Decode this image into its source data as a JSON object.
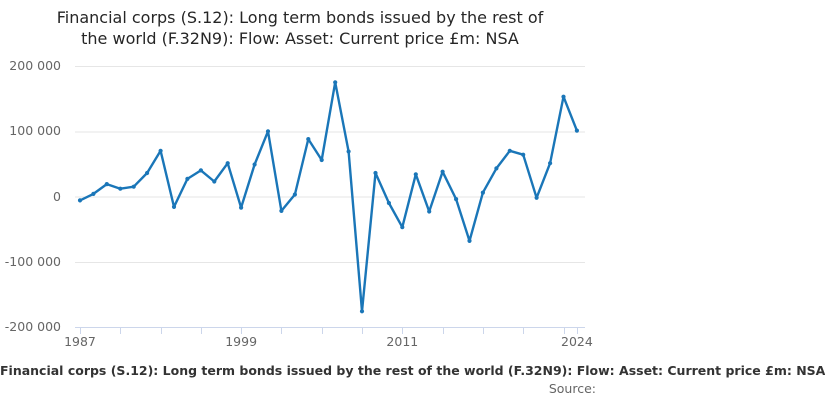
{
  "title": {
    "text": "Financial corps (S.12): Long term bonds issued by the rest of the world (F.32N9): Flow: Asset: Current price £m: NSA",
    "lines": [
      "Financial corps (S.12): Long term bonds issued by the rest of",
      "the world (F.32N9): Flow: Asset: Current price £m: NSA"
    ]
  },
  "footer": {
    "text": "Financial corps (S.12): Long term bonds issued by the rest of the world (F.32N9): Flow: Asset: Current price £m: NSA",
    "source": "Source:"
  },
  "colors": {
    "line": "#1a76b8",
    "grid": "#e6e6e6",
    "axis": "#ccd6eb",
    "tick_label": "#666666",
    "title_text": "#262626",
    "footer_text": "#333333",
    "source_text": "#666666",
    "background": "#ffffff"
  },
  "chart_data": {
    "type": "line",
    "title": "Financial corps (S.12): Long term bonds issued by the rest of the world (F.32N9): Flow: Asset: Current price £m: NSA",
    "unit": "£m",
    "grid": true,
    "legend": false,
    "marker": "circle",
    "x_range": [
      1986.63,
      2024.6
    ],
    "ylim": [
      -200000,
      200000
    ],
    "x": [
      1987,
      1988,
      1989,
      1990,
      1991,
      1992,
      1993,
      1994,
      1995,
      1996,
      1997,
      1998,
      1999,
      2000,
      2001,
      2002,
      2003,
      2004,
      2005,
      2006,
      2007,
      2008,
      2009,
      2010,
      2011,
      2012,
      2013,
      2014,
      2015,
      2016,
      2017,
      2018,
      2019,
      2020,
      2021,
      2022,
      2023,
      2024
    ],
    "values": [
      -6000,
      4000,
      19000,
      12000,
      15000,
      36000,
      70000,
      -16000,
      27000,
      40000,
      23000,
      51000,
      -17000,
      49000,
      100000,
      -22000,
      3000,
      88000,
      56000,
      175000,
      69000,
      -176000,
      36000,
      -10000,
      -47000,
      34000,
      -23000,
      38000,
      -4000,
      -68000,
      6000,
      43000,
      70000,
      64000,
      -2000,
      51000,
      153000,
      101000
    ],
    "y_ticks": [
      {
        "value": 200000,
        "label": "200 000"
      },
      {
        "value": 100000,
        "label": "100 000"
      },
      {
        "value": 0,
        "label": "0"
      },
      {
        "value": -100000,
        "label": "-100 000"
      },
      {
        "value": -200000,
        "label": "-200 000"
      }
    ],
    "x_tick_years": [
      1987,
      1990,
      1993,
      1996,
      1999,
      2002,
      2005,
      2008,
      2011,
      2014,
      2017,
      2020,
      2023,
      2024
    ],
    "x_labels": [
      {
        "year": 1987,
        "label": "1987"
      },
      {
        "year": 1999,
        "label": "1999"
      },
      {
        "year": 2011,
        "label": "2011"
      },
      {
        "year": 2024,
        "label": "2024"
      }
    ]
  }
}
